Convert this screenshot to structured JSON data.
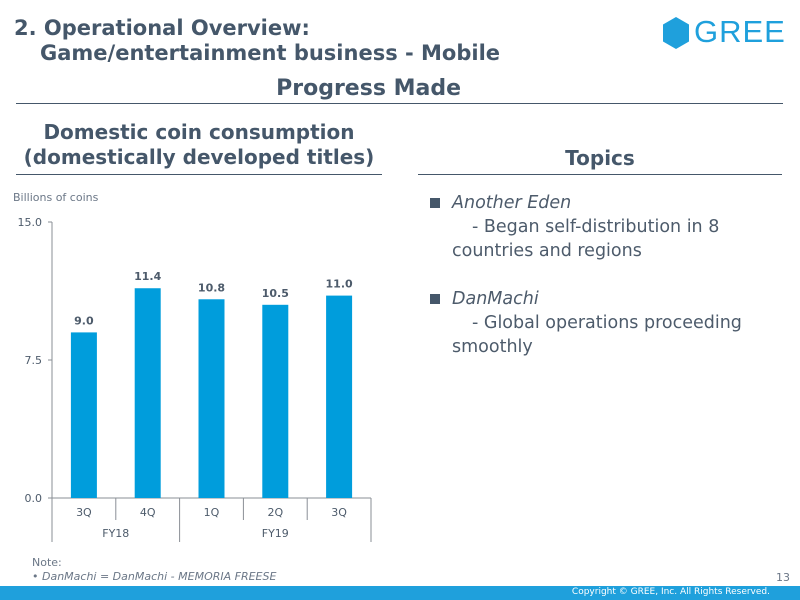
{
  "header": {
    "line1": "2. Operational Overview:",
    "line2": "Game/entertainment business - Mobile",
    "logo_text": "GREE"
  },
  "section_title": "Progress Made",
  "chart_title": {
    "line1": "Domestic coin consumption",
    "line2": "(domestically developed titles)"
  },
  "unit_label": "Billions of coins",
  "topics_title": "Topics",
  "topics": [
    {
      "name": "Another Eden",
      "desc": "- Began self-distribution in 8 countries and regions"
    },
    {
      "name": "DanMachi",
      "desc": "- Global operations proceeding smoothly"
    }
  ],
  "note": {
    "label": "Note:",
    "text": "• DanMachi = DanMachi - MEMORIA FREESE"
  },
  "page_number": "13",
  "copyright": "Copyright © GREE, Inc. All Rights Reserved.",
  "colors": {
    "bar": "#009ddc",
    "heading": "#45576a",
    "brand": "#1fa0dc"
  },
  "chart_data": {
    "type": "bar",
    "categories": [
      "3Q",
      "4Q",
      "1Q",
      "2Q",
      "3Q"
    ],
    "groups": [
      {
        "label": "FY18",
        "span": [
          0,
          1
        ]
      },
      {
        "label": "FY19",
        "span": [
          2,
          4
        ]
      }
    ],
    "values": [
      9.0,
      11.4,
      10.8,
      10.5,
      11.0
    ],
    "value_labels": [
      "9.0",
      "11.4",
      "10.8",
      "10.5",
      "11.0"
    ],
    "ylabel": "Billions of coins",
    "ylim": [
      0,
      15
    ],
    "yticks": [
      0,
      7.5,
      15
    ],
    "ytick_labels": [
      "0.0",
      "7.5",
      "15.0"
    ],
    "grid": false
  }
}
